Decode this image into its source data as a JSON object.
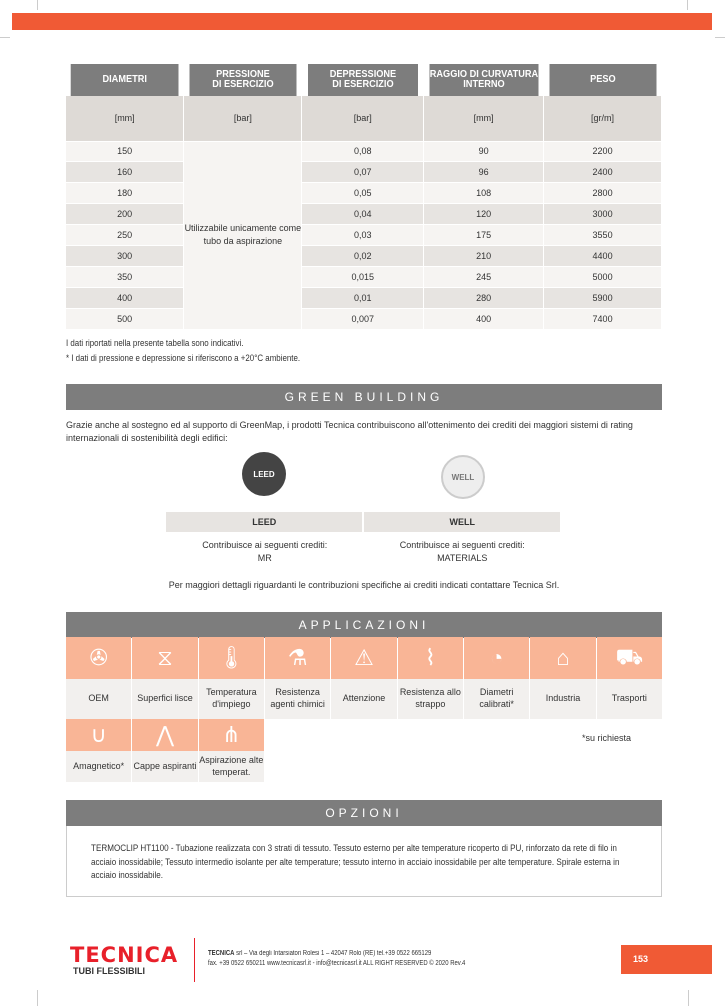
{
  "spec_table": {
    "headers": [
      "DIAMETRI",
      "PRESSIONE\nDI ESERCIZIO",
      "DEPRESSIONE\nDI ESERCIZIO",
      "RAGGIO DI CURVATURA\nINTERNO",
      "PESO"
    ],
    "units": [
      "[mm]",
      "[bar]",
      "[bar]",
      "[mm]",
      "[gr/m]"
    ],
    "pressure_note": "Utilizzabile unicamente come tubo da aspirazione",
    "rows": [
      [
        "150",
        "0,08",
        "90",
        "2200"
      ],
      [
        "160",
        "0,07",
        "96",
        "2400"
      ],
      [
        "180",
        "0,05",
        "108",
        "2800"
      ],
      [
        "200",
        "0,04",
        "120",
        "3000"
      ],
      [
        "250",
        "0,03",
        "175",
        "3550"
      ],
      [
        "300",
        "0,02",
        "210",
        "4400"
      ],
      [
        "350",
        "0,015",
        "245",
        "5000"
      ],
      [
        "400",
        "0,01",
        "280",
        "5900"
      ],
      [
        "500",
        "0,007",
        "400",
        "7400"
      ]
    ]
  },
  "notes": [
    "I dati riportati nella presente tabella sono indicativi.",
    "* I dati di pressione e depressione si riferiscono a +20°C ambiente."
  ],
  "green_building": {
    "title": "GREEN BUILDING",
    "intro": "Grazie anche al sostegno ed al supporto di GreenMap, i prodotti Tecnica contribuiscono all'ottenimento dei crediti dei maggiori sistemi di rating internazionali di sostenibilità degli edifici:",
    "logos": [
      "LEED",
      "WELL"
    ],
    "columns": [
      {
        "name": "LEED",
        "label": "Contribuisce ai seguenti crediti:",
        "value": "MR"
      },
      {
        "name": "WELL",
        "label": "Contribuisce ai seguenti crediti:",
        "value": "MATERIALS"
      }
    ],
    "footer": "Per maggiori dettagli riguardanti le contribuzioni specifiche ai crediti indicati contattare Tecnica Srl."
  },
  "applicazioni": {
    "title": "APPLICAZIONI",
    "items": [
      {
        "label": "OEM",
        "icon": "fan-icon",
        "glyph": "✇"
      },
      {
        "label": "Superfici lisce",
        "icon": "hourglass-icon",
        "glyph": "⧖"
      },
      {
        "label": "Temperatura d'impiego",
        "icon": "thermometer-icon",
        "glyph": "🌡"
      },
      {
        "label": "Resistenza agenti chimici",
        "icon": "flask-icon",
        "glyph": "⚗"
      },
      {
        "label": "Attenzione",
        "icon": "warning-icon",
        "glyph": "⚠"
      },
      {
        "label": "Resistenza allo strappo",
        "icon": "tear-icon",
        "glyph": "⌇"
      },
      {
        "label": "Diametri calibrati*",
        "icon": "caliper-icon",
        "glyph": "◔"
      },
      {
        "label": "Industria",
        "icon": "factory-icon",
        "glyph": "⌂"
      },
      {
        "label": "Trasporti",
        "icon": "truck-icon",
        "glyph": "⛟"
      },
      {
        "label": "Amagnetico*",
        "icon": "magnet-icon",
        "glyph": "∪"
      },
      {
        "label": "Cappe aspiranti",
        "icon": "hood-icon",
        "glyph": "⋀"
      },
      {
        "label": "Aspirazione alte temperat.",
        "icon": "hot-suction-icon",
        "glyph": "⋔"
      }
    ],
    "note": "*su richiesta"
  },
  "opzioni": {
    "title": "OPZIONI",
    "text": "TERMOCLIP HT1100 - Tubazione realizzata con 3 strati di tessuto. Tessuto esterno per alte temperature ricoperto di PU, rinforzato da rete di filo in acciaio inossidabile; Tessuto intermedio isolante per alte temperature; tessuto interno in acciaio inossidabile per alte temperature. Spirale esterna in acciaio inossidabile."
  },
  "footer": {
    "logo_text": "TECNICA",
    "logo_sub": "TUBI FLESSIBILI",
    "company": "TECNICA",
    "line1": " srl – Via degli Intarsiatori Rolesi 1 – 42047 Rolo (RE) tel.+39 0522 665129",
    "line2": "fax. +39 0522 650211  www.tecnicasrl.it - info@tecnicasrl.it    ALL RIGHT RESERVED © 2020 Rev.4",
    "page": "153"
  },
  "colors": {
    "accent": "#f05a35",
    "header_gray": "#7d7d7d",
    "icon_bg": "#f9b596"
  }
}
